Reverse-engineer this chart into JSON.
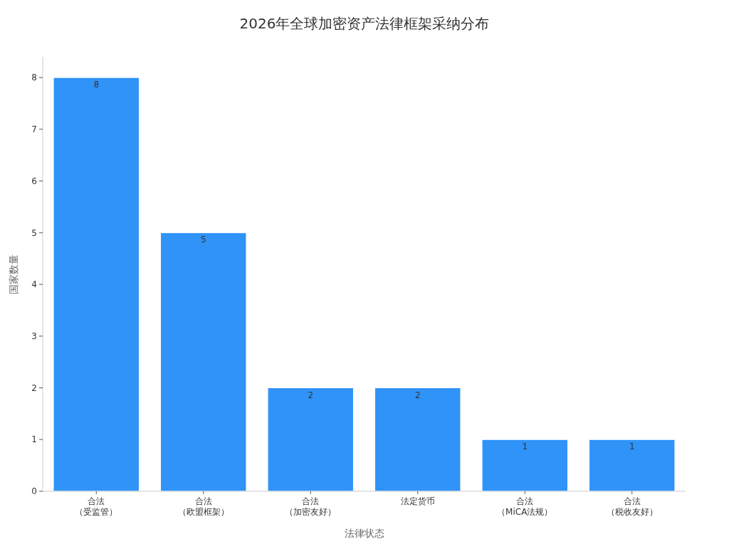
{
  "chart_data": {
    "type": "bar",
    "title": "2026年全球加密资产法律框架采纳分布",
    "xlabel": "法律状态",
    "ylabel": "国家数量",
    "categories": [
      "合法（受监管）",
      "合法（欧盟框架）",
      "合法（加密友好）",
      "法定货币",
      "合法（MiCA法规）",
      "合法（税收友好）"
    ],
    "values": [
      8,
      5,
      2,
      2,
      1,
      1
    ],
    "color": "#2f93f8",
    "ylim": [
      0,
      8.4
    ],
    "yticks": [
      0,
      1,
      2,
      3,
      4,
      5,
      6,
      7,
      8
    ],
    "data_labels": true
  }
}
